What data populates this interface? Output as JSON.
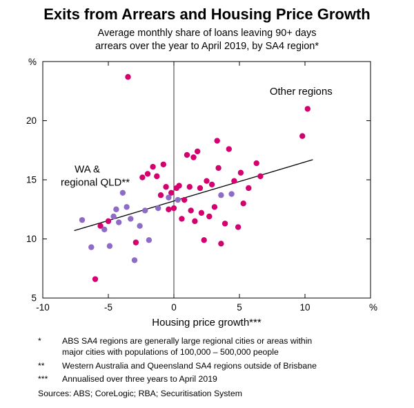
{
  "chart_data": {
    "type": "scatter",
    "title": "Exits from Arrears and Housing Price Growth",
    "subtitle_lines": [
      "Average monthly share of loans leaving 90+ days",
      "arrears over the year to April 2019, by SA4 region*"
    ],
    "xlabel": "Housing price growth***",
    "x_unit": "%",
    "y_unit": "%",
    "xlim": [
      -10,
      15
    ],
    "ylim": [
      5,
      25
    ],
    "xticks": [
      -10,
      -5,
      0,
      5,
      10
    ],
    "yticks": [
      5,
      10,
      15,
      20
    ],
    "grid": false,
    "vline_x": 0,
    "trendline": {
      "x1": -7.6,
      "y1": 10.7,
      "x2": 10.6,
      "y2": 16.7
    },
    "series": [
      {
        "name": "Other regions",
        "color": "#d4006e",
        "points": [
          [
            -6.0,
            6.6
          ],
          [
            -5.6,
            11.1
          ],
          [
            -5.0,
            11.5
          ],
          [
            -3.5,
            23.7
          ],
          [
            -2.9,
            9.7
          ],
          [
            -2.4,
            15.2
          ],
          [
            -2.0,
            15.5
          ],
          [
            -1.6,
            16.1
          ],
          [
            -1.3,
            15.3
          ],
          [
            -1.0,
            13.7
          ],
          [
            -0.8,
            16.3
          ],
          [
            -0.6,
            14.4
          ],
          [
            -0.4,
            12.5
          ],
          [
            -0.2,
            13.9
          ],
          [
            0.0,
            12.6
          ],
          [
            0.2,
            14.3
          ],
          [
            0.4,
            14.5
          ],
          [
            0.6,
            11.7
          ],
          [
            0.8,
            13.3
          ],
          [
            1.0,
            17.1
          ],
          [
            1.2,
            14.4
          ],
          [
            1.3,
            12.4
          ],
          [
            1.5,
            16.9
          ],
          [
            1.6,
            11.5
          ],
          [
            1.8,
            17.4
          ],
          [
            2.0,
            14.3
          ],
          [
            2.1,
            12.2
          ],
          [
            2.3,
            9.9
          ],
          [
            2.5,
            14.9
          ],
          [
            2.7,
            11.9
          ],
          [
            2.9,
            14.6
          ],
          [
            3.1,
            12.7
          ],
          [
            3.3,
            18.3
          ],
          [
            3.4,
            16.0
          ],
          [
            3.6,
            9.6
          ],
          [
            3.9,
            11.3
          ],
          [
            4.2,
            17.6
          ],
          [
            4.6,
            14.9
          ],
          [
            4.9,
            11.0
          ],
          [
            5.1,
            15.6
          ],
          [
            5.3,
            13.0
          ],
          [
            5.7,
            14.3
          ],
          [
            6.3,
            16.4
          ],
          [
            6.6,
            15.3
          ],
          [
            9.8,
            18.7
          ],
          [
            10.2,
            21.0
          ]
        ]
      },
      {
        "name": "WA & regional QLD",
        "color": "#8f6bc8",
        "points": [
          [
            -7.0,
            11.6
          ],
          [
            -6.3,
            9.3
          ],
          [
            -5.3,
            10.8
          ],
          [
            -4.9,
            9.4
          ],
          [
            -4.6,
            11.9
          ],
          [
            -4.4,
            12.5
          ],
          [
            -4.2,
            11.4
          ],
          [
            -3.9,
            13.9
          ],
          [
            -3.6,
            12.7
          ],
          [
            -3.3,
            11.7
          ],
          [
            -3.0,
            8.2
          ],
          [
            -2.6,
            11.1
          ],
          [
            -2.2,
            12.4
          ],
          [
            -1.9,
            9.9
          ],
          [
            -1.2,
            12.6
          ],
          [
            -0.4,
            13.5
          ],
          [
            0.3,
            13.3
          ],
          [
            3.6,
            13.7
          ],
          [
            4.4,
            13.8
          ]
        ]
      }
    ],
    "annotations": [
      {
        "text": "Other regions",
        "x": 9.7,
        "y": 22.2,
        "color": "#d4006e",
        "anchor": "middle"
      },
      {
        "text": "WA &",
        "x": -6.6,
        "y": 15.6,
        "color": "#8f6bc8",
        "anchor": "middle"
      },
      {
        "text": "regional QLD**",
        "x": -6.0,
        "y": 14.5,
        "color": "#8f6bc8",
        "anchor": "middle"
      }
    ],
    "legend_position": "none"
  },
  "footnotes": {
    "items": [
      {
        "marker": "*",
        "lines": [
          "ABS SA4 regions are generally large regional cities or areas within",
          "major cities with populations of 100,000 – 500,000 people"
        ]
      },
      {
        "marker": "**",
        "lines": [
          "Western Australia and Queensland SA4 regions outside of Brisbane"
        ]
      },
      {
        "marker": "***",
        "lines": [
          "Annualised over three years to April 2019"
        ]
      }
    ],
    "sources": "Sources: ABS; CoreLogic; RBA; Securitisation System"
  }
}
